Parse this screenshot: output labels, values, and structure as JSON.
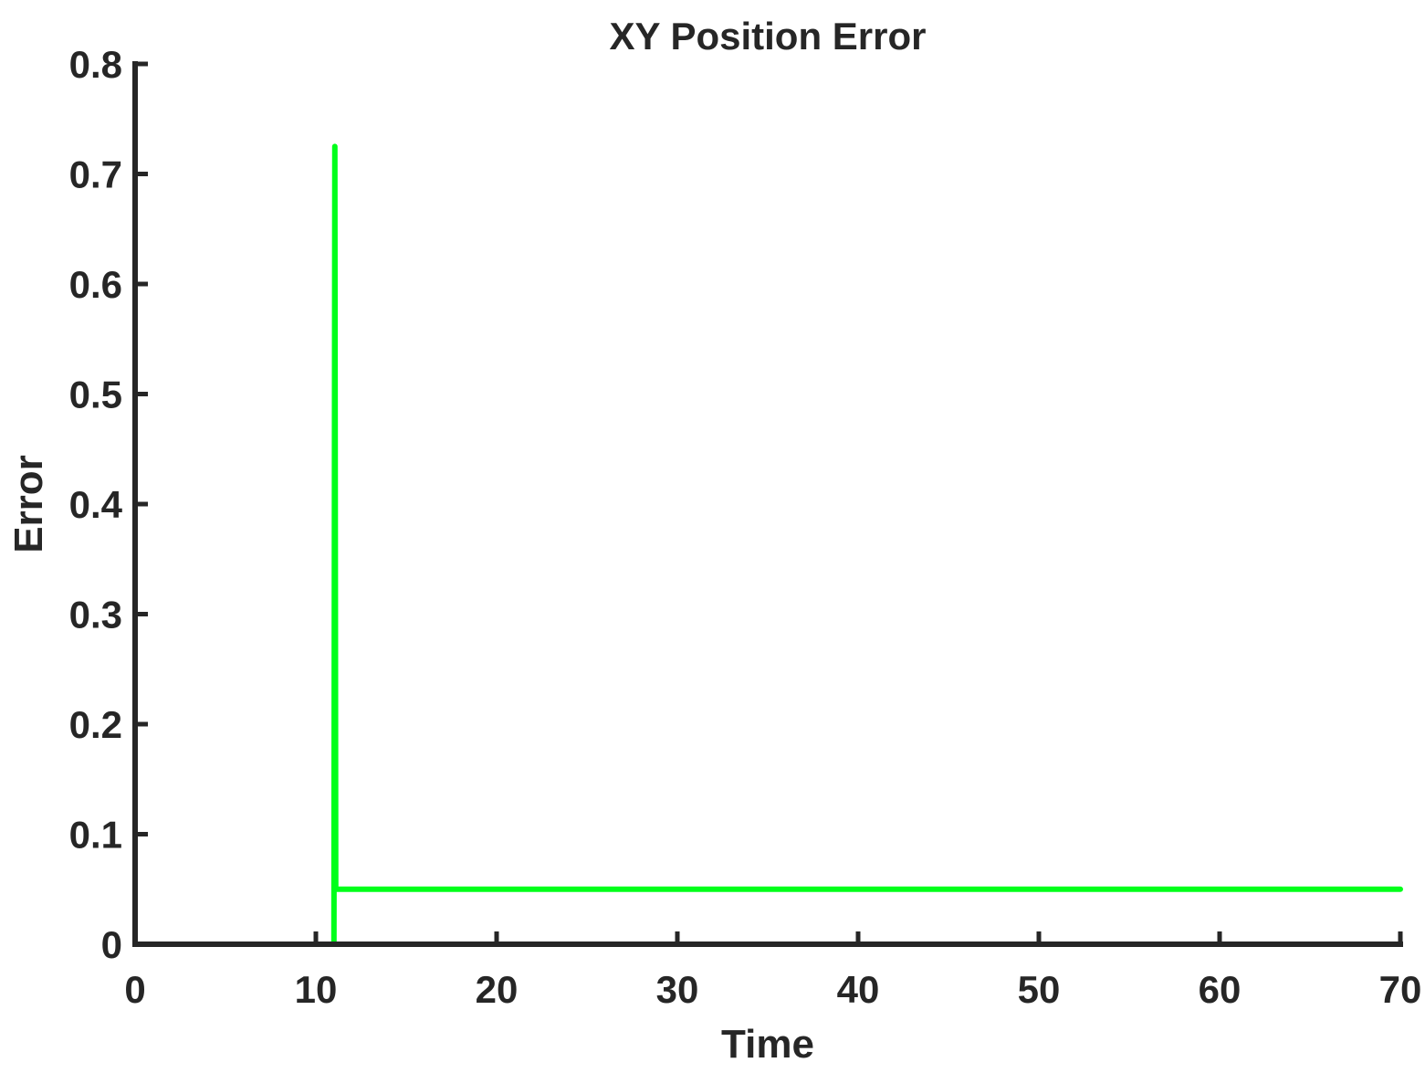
{
  "chart_data": {
    "type": "line",
    "title": "XY Position Error",
    "xlabel": "Time",
    "ylabel": "Error",
    "xlim": [
      0,
      70
    ],
    "ylim": [
      0,
      0.8
    ],
    "xticks": [
      0,
      10,
      20,
      30,
      40,
      50,
      60,
      70
    ],
    "xtick_labels": [
      "0",
      "10",
      "20",
      "30",
      "40",
      "50",
      "60",
      "70"
    ],
    "yticks": [
      0,
      0.1,
      0.2,
      0.3,
      0.4,
      0.5,
      0.6,
      0.7,
      0.8
    ],
    "ytick_labels": [
      "0",
      "0.1",
      "0.2",
      "0.3",
      "0.4",
      "0.5",
      "0.6",
      "0.7",
      "0.8"
    ],
    "grid": false,
    "legend": false,
    "box": false,
    "axis_color": "#262626",
    "series": [
      {
        "color": "#00ff1a",
        "x": [
          1,
          11,
          11.05,
          11.1,
          70
        ],
        "y": [
          0,
          0,
          0.725,
          0.05,
          0.05
        ]
      }
    ]
  }
}
